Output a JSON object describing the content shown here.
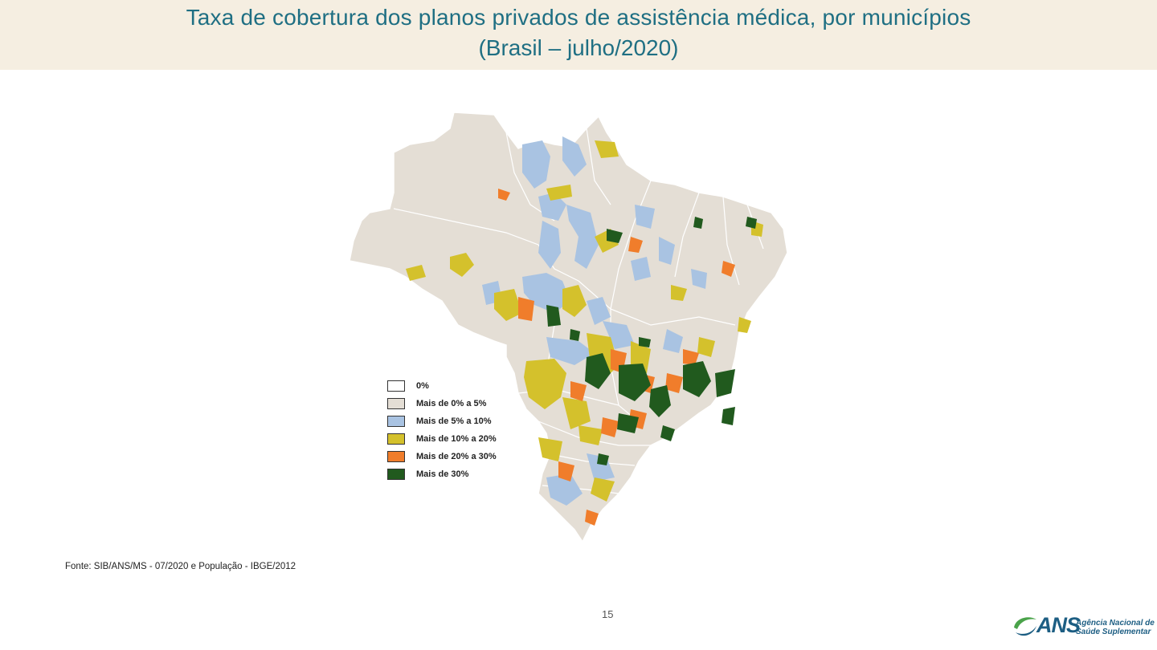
{
  "header": {
    "title_line1": "Taxa de cobertura dos planos privados de assistência médica, por municípios",
    "title_line2": "(Brasil – julho/2020)"
  },
  "legend": {
    "items": [
      {
        "label": "0%",
        "color": "#ffffff"
      },
      {
        "label": "Mais de 0% a 5%",
        "color": "#e4ded5"
      },
      {
        "label": "Mais de 5% a 10%",
        "color": "#a9c3e2"
      },
      {
        "label": "Mais de 10% a 20%",
        "color": "#d4c12c"
      },
      {
        "label": "Mais de 20% a 30%",
        "color": "#f07d2b"
      },
      {
        "label": "Mais de 30%",
        "color": "#215a1e"
      }
    ]
  },
  "source": "Fonte: SIB/ANS/MS - 07/2020 e População - IBGE/2012",
  "page_number": "15",
  "logo": {
    "abbr": "ANS",
    "line1": "Agência Nacional de",
    "line2": "Saúde Suplementar"
  }
}
